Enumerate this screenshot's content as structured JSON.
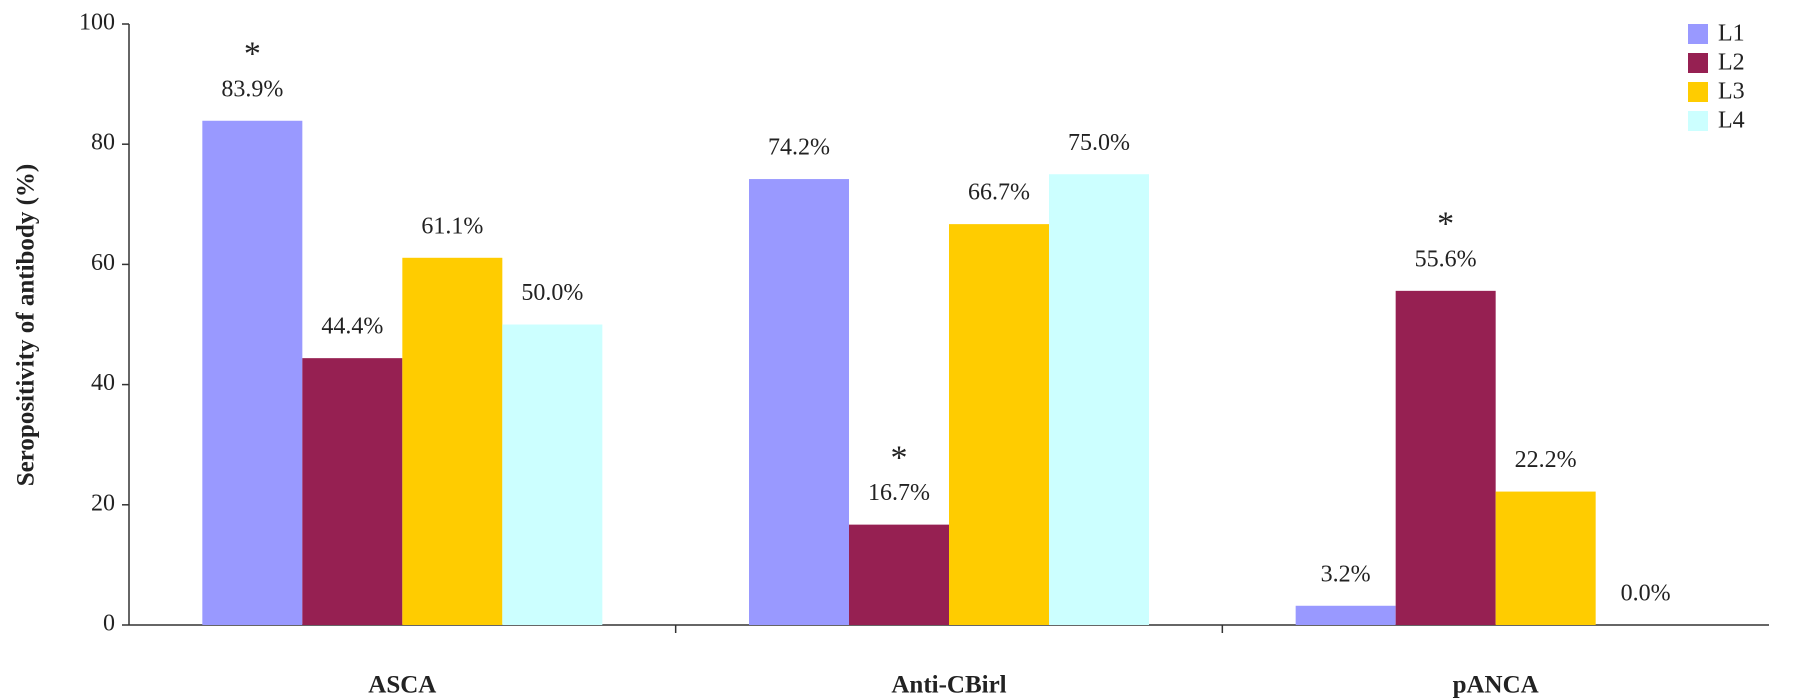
{
  "chart_data": {
    "type": "bar",
    "y_label": "Seropositivity of antibody (%)",
    "categories": [
      "ASCA",
      "Anti-CBirl",
      "pANCA"
    ],
    "series": [
      {
        "name": "L1",
        "color": "#9999ff",
        "values": [
          83.9,
          74.2,
          3.2
        ],
        "value_labels": [
          "83.9%",
          "74.2%",
          "3.2%"
        ],
        "annotations": [
          "*",
          null,
          null
        ]
      },
      {
        "name": "L2",
        "color": "#962052",
        "values": [
          44.4,
          16.7,
          55.6
        ],
        "value_labels": [
          "44.4%",
          "16.7%",
          "55.6%"
        ],
        "annotations": [
          null,
          "*",
          "*"
        ]
      },
      {
        "name": "L3",
        "color": "#ffcc00",
        "values": [
          61.1,
          66.7,
          22.2
        ],
        "value_labels": [
          "61.1%",
          "66.7%",
          "22.2%"
        ],
        "annotations": [
          null,
          null,
          null
        ]
      },
      {
        "name": "L4",
        "color": "#ccffff",
        "values": [
          50.0,
          75.0,
          0.0
        ],
        "value_labels": [
          "50.0%",
          "75.0%",
          "0.0%"
        ],
        "annotations": [
          null,
          null,
          null
        ]
      }
    ],
    "ylim": [
      0,
      100
    ],
    "yticks": [
      0,
      20,
      40,
      60,
      80,
      100
    ],
    "grid": false,
    "legend": "top-right"
  }
}
